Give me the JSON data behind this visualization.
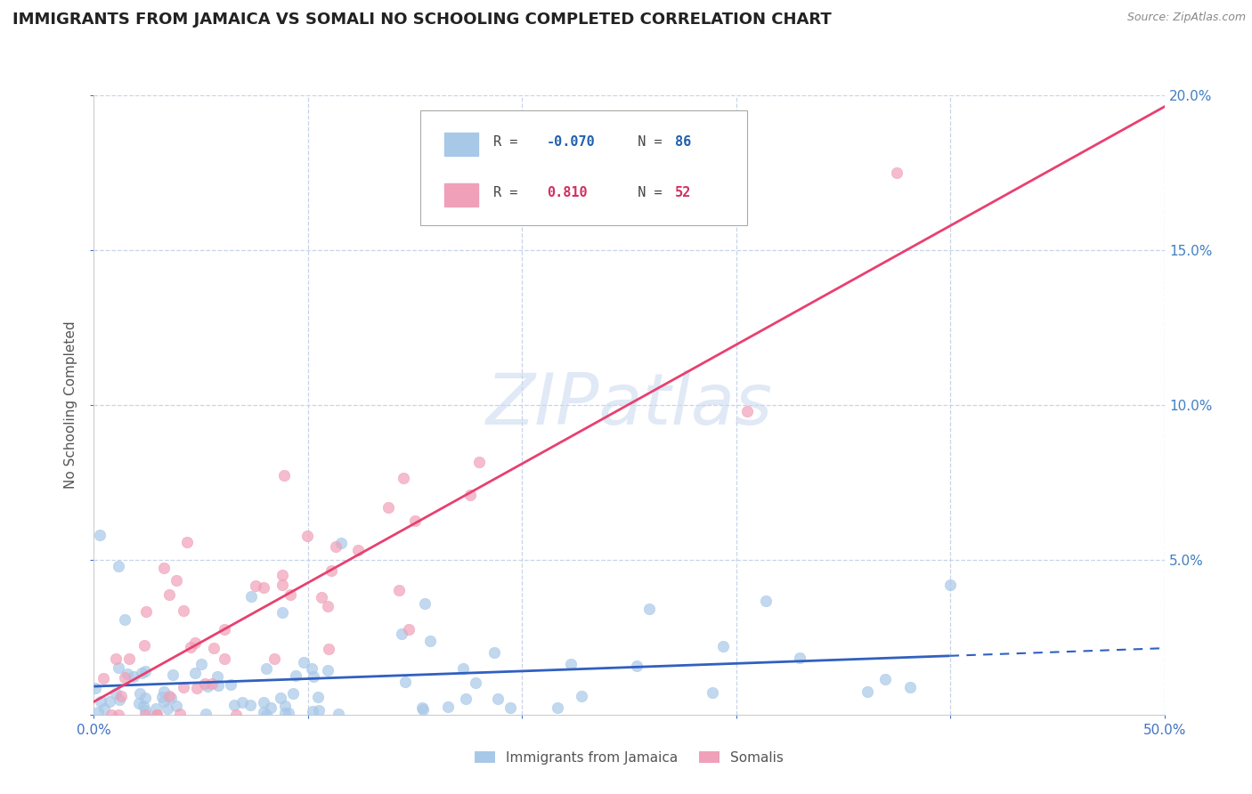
{
  "title": "IMMIGRANTS FROM JAMAICA VS SOMALI NO SCHOOLING COMPLETED CORRELATION CHART",
  "source": "Source: ZipAtlas.com",
  "ylabel": "No Schooling Completed",
  "xlim": [
    0.0,
    0.5
  ],
  "ylim": [
    -0.005,
    0.205
  ],
  "plot_ylim": [
    0.0,
    0.2
  ],
  "jamaica_R": -0.07,
  "jamaica_N": 86,
  "somali_R": 0.81,
  "somali_N": 52,
  "jamaica_color": "#a8c8e8",
  "somali_color": "#f0a0b8",
  "jamaica_line_color": "#3060c0",
  "somali_line_color": "#e84070",
  "watermark_color": "#c8d8ee",
  "background_color": "#ffffff",
  "grid_color": "#c8d4e8",
  "title_fontsize": 13,
  "axis_label_fontsize": 11,
  "tick_fontsize": 11,
  "right_tick_color": "#4080c0",
  "legend_R_color_jamaica": "#2060b0",
  "legend_R_color_somali": "#d03060"
}
